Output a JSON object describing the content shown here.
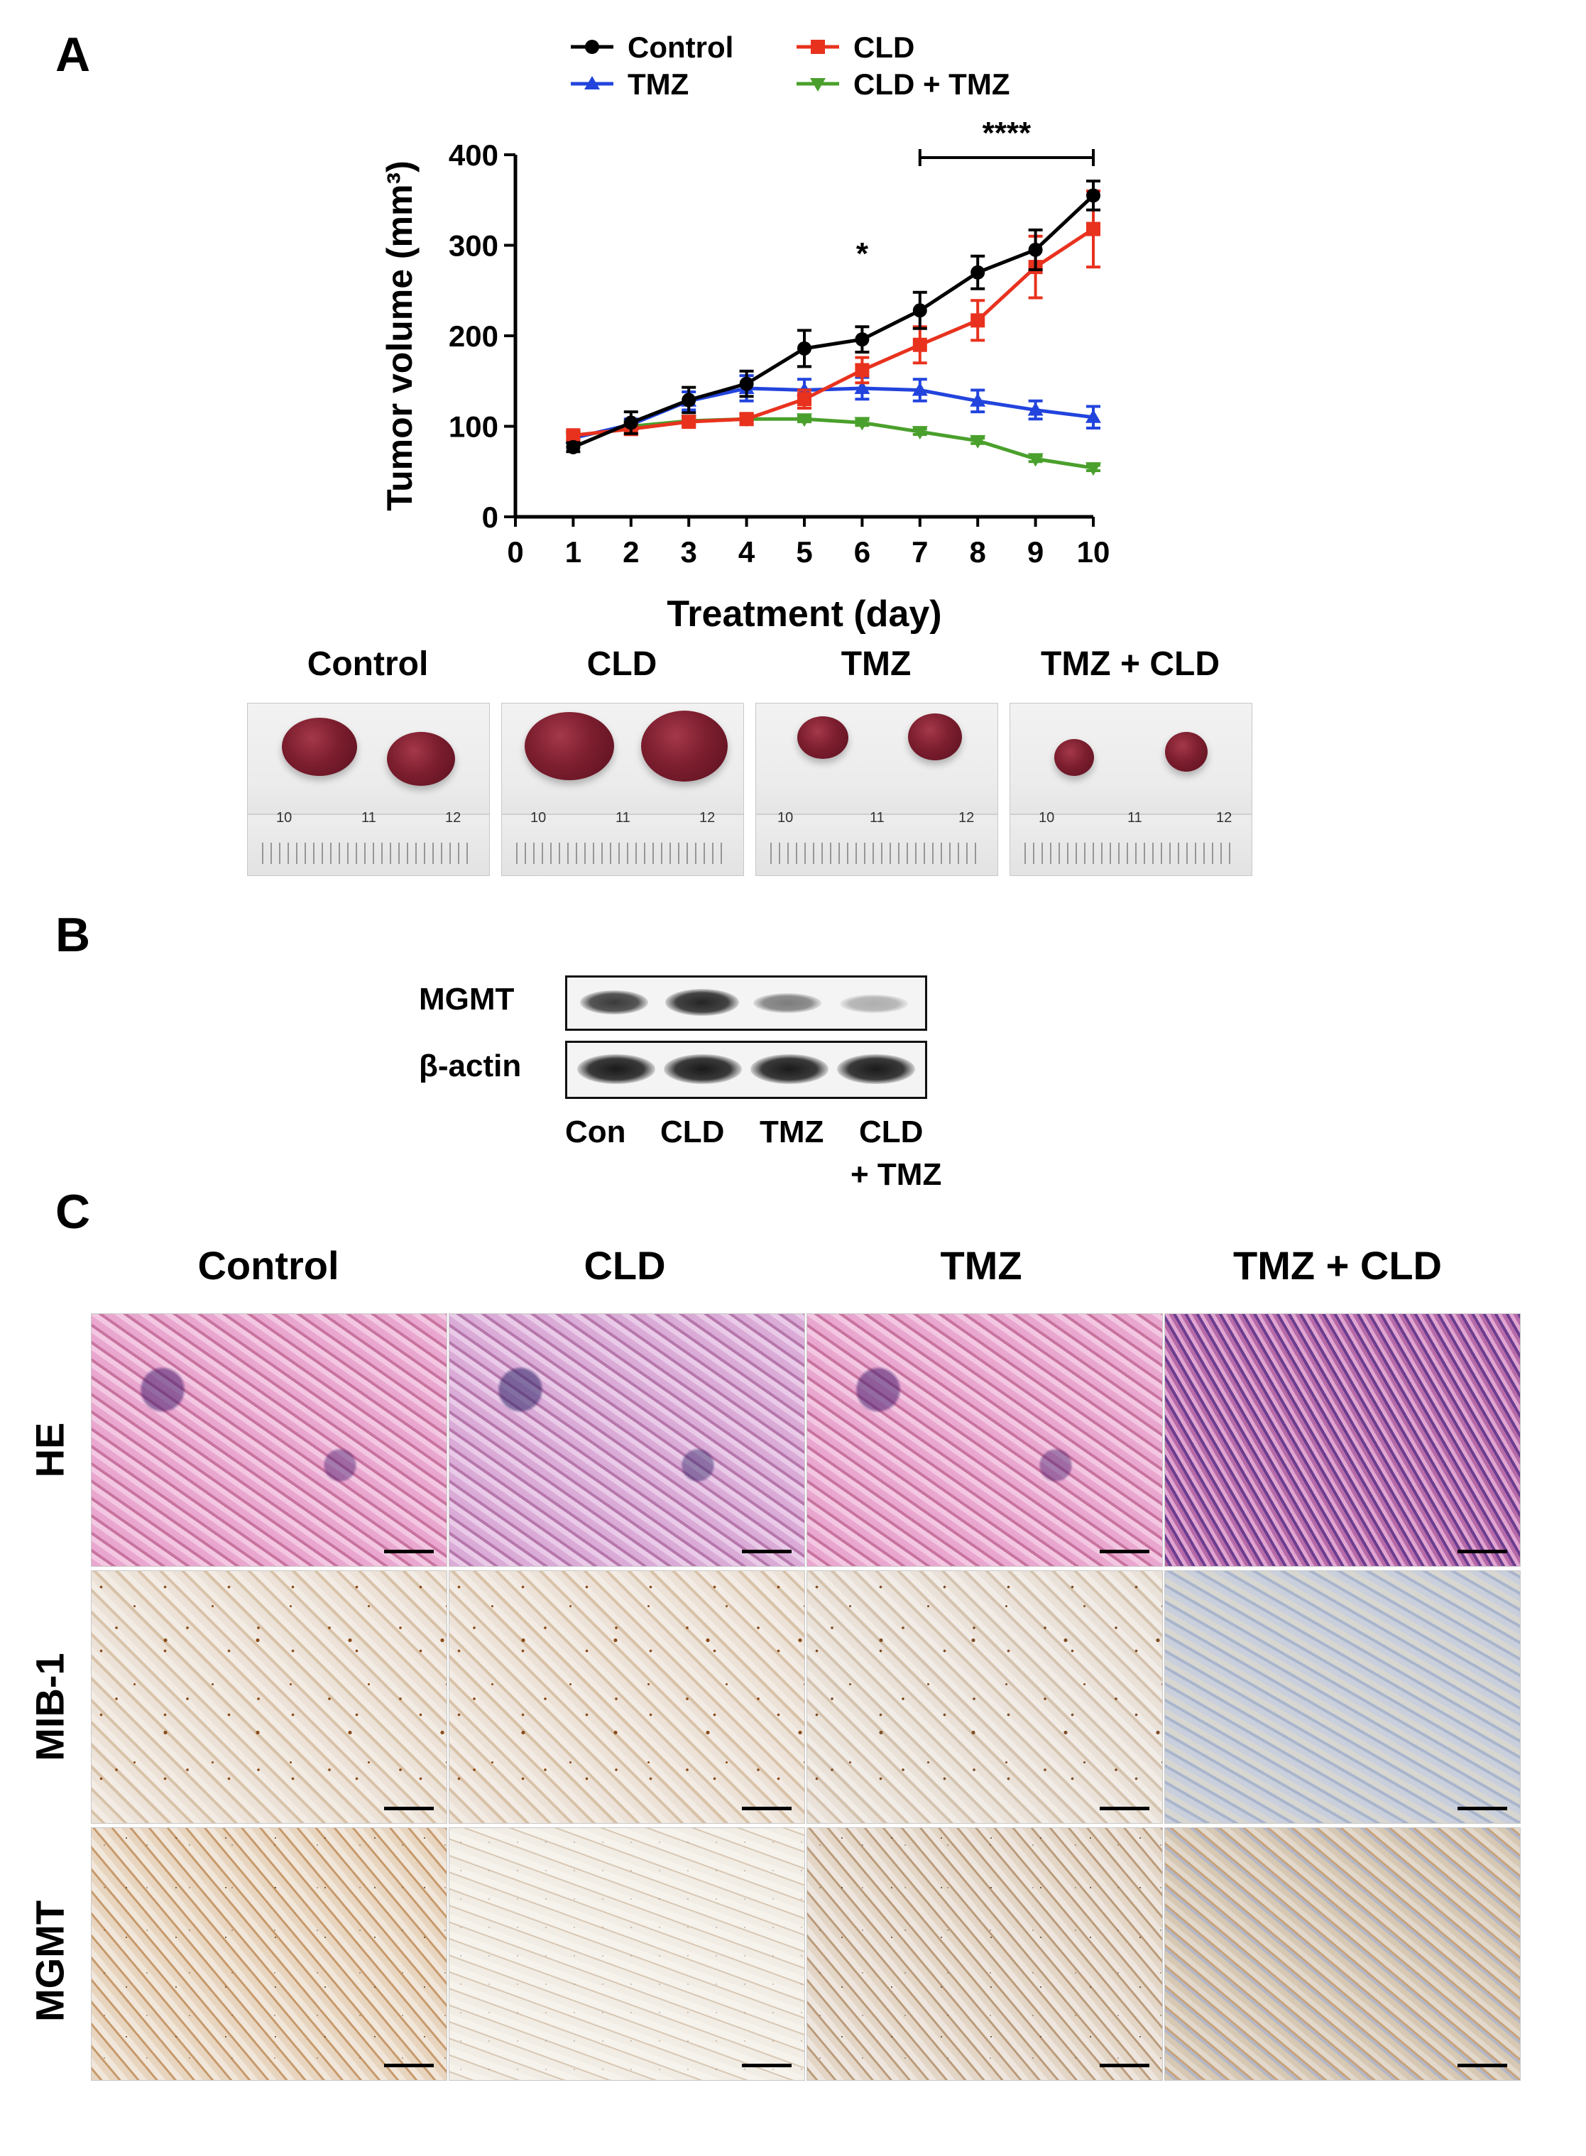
{
  "panels": {
    "a": "A",
    "b": "B",
    "c": "C"
  },
  "chart_data": {
    "type": "line",
    "xlabel": "Treatment (day)",
    "ylabel": "Tumor volume (mm³)",
    "xlim": [
      0,
      10
    ],
    "ylim": [
      0,
      400
    ],
    "xticks": [
      "0",
      "1",
      "2",
      "3",
      "4",
      "5",
      "6",
      "7",
      "8",
      "9",
      "10"
    ],
    "yticks": [
      "0",
      "100",
      "200",
      "300",
      "400"
    ],
    "x": [
      1,
      2,
      3,
      4,
      5,
      6,
      7,
      8,
      9,
      10
    ],
    "series": [
      {
        "name": "Control",
        "color": "#000000",
        "marker": "circle",
        "values": [
          77,
          104,
          129,
          147,
          186,
          196,
          228,
          270,
          295,
          355
        ],
        "errors": [
          5,
          12,
          14,
          14,
          20,
          14,
          20,
          18,
          22,
          16
        ]
      },
      {
        "name": "CLD",
        "color": "#e8321e",
        "marker": "square",
        "values": [
          90,
          97,
          105,
          108,
          130,
          162,
          190,
          217,
          276,
          318
        ],
        "errors": [
          5,
          6,
          5,
          6,
          10,
          14,
          20,
          22,
          34,
          42
        ]
      },
      {
        "name": "TMZ",
        "color": "#2244dd",
        "marker": "triangle-up",
        "values": [
          87,
          102,
          128,
          142,
          140,
          142,
          140,
          128,
          118,
          110
        ],
        "errors": [
          5,
          6,
          10,
          14,
          12,
          12,
          12,
          12,
          10,
          12
        ]
      },
      {
        "name": "CLD + TMZ",
        "color": "#4aa02c",
        "marker": "triangle-down",
        "values": [
          88,
          100,
          106,
          108,
          108,
          104,
          94,
          84,
          64,
          54
        ],
        "errors": [
          3,
          3,
          3,
          3,
          3,
          3,
          3,
          3,
          3,
          3
        ]
      }
    ],
    "annotations": [
      "*",
      "****"
    ],
    "legend_position": "top"
  },
  "tumor_groups": [
    "Control",
    "CLD",
    "TMZ",
    "TMZ + CLD"
  ],
  "ruler_numbers": [
    "10",
    "11",
    "12"
  ],
  "blot": {
    "rows": [
      "MGMT",
      "β-actin"
    ],
    "lanes": [
      "Con",
      "CLD",
      "TMZ",
      "CLD",
      "+ TMZ"
    ]
  },
  "ihc": {
    "columns": [
      "Control",
      "CLD",
      "TMZ",
      "TMZ + CLD"
    ],
    "rows": [
      "HE",
      "MIB-1",
      "MGMT"
    ]
  }
}
